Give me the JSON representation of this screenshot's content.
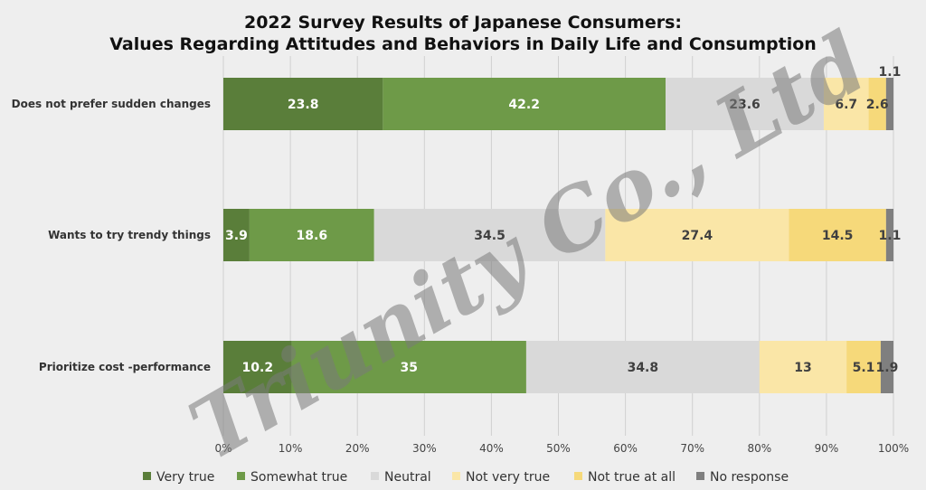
{
  "watermark": "Triunity Co., Ltd",
  "chart_data": {
    "type": "bar",
    "orientation": "horizontal",
    "stacked": "percent",
    "title": "2022 Survey Results of Japanese Consumers:",
    "subtitle": "Values Regarding Attitudes and Behaviors in Daily Life and Consumption",
    "categories": [
      "Does not prefer sudden changes",
      "Wants to try trendy things",
      "Prioritize cost -performance"
    ],
    "series": [
      {
        "name": "Very true",
        "color": "#5a7e3a",
        "label_color": "#ffffff",
        "values": [
          23.8,
          3.9,
          10.2
        ]
      },
      {
        "name": "Somewhat true",
        "color": "#6e9a48",
        "label_color": "#ffffff",
        "values": [
          42.2,
          18.6,
          35
        ]
      },
      {
        "name": "Neutral",
        "color": "#d9d9d9",
        "label_color": "#404040",
        "values": [
          23.6,
          34.5,
          34.8
        ]
      },
      {
        "name": "Not very true",
        "color": "#fae6a7",
        "label_color": "#404040",
        "values": [
          6.7,
          27.4,
          13
        ]
      },
      {
        "name": "Not true at all",
        "color": "#f6d97a",
        "label_color": "#404040",
        "values": [
          2.6,
          14.5,
          5.1
        ]
      },
      {
        "name": "No response",
        "color": "#7f7f7f",
        "label_color": "#404040",
        "values": [
          1.1,
          1.1,
          1.9
        ]
      }
    ],
    "x_ticks": [
      "0%",
      "10%",
      "20%",
      "30%",
      "40%",
      "50%",
      "60%",
      "70%",
      "80%",
      "90%",
      "100%"
    ],
    "xlim": [
      0,
      100
    ],
    "grid": "vertical",
    "legend": "bottom"
  }
}
